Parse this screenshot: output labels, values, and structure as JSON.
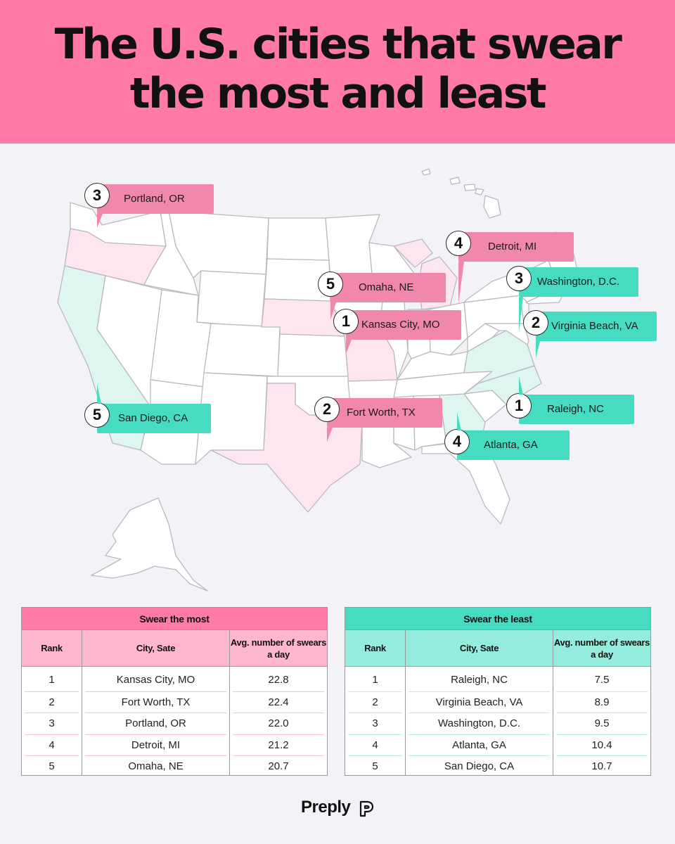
{
  "header": {
    "title_line1": "The U.S. cities that swear",
    "title_line2": "the most and least"
  },
  "colors": {
    "header_bg": "#ff7aa8",
    "most_accent": "#f087ad",
    "least_accent": "#45dcc2",
    "most_state_fill": "#fde6ef",
    "least_state_fill": "#dff5ef"
  },
  "map": {
    "most_swearing_states": [
      "OR",
      "NE",
      "MO",
      "MI",
      "TX"
    ],
    "least_swearing_states": [
      "CA",
      "NC",
      "VA",
      "GA"
    ],
    "labels": [
      {
        "rank": "3",
        "city": "Portland, OR",
        "group": "most"
      },
      {
        "rank": "4",
        "city": "Detroit, MI",
        "group": "most"
      },
      {
        "rank": "5",
        "city": "Omaha, NE",
        "group": "most"
      },
      {
        "rank": "1",
        "city": "Kansas City, MO",
        "group": "most"
      },
      {
        "rank": "2",
        "city": "Fort Worth, TX",
        "group": "most"
      },
      {
        "rank": "3",
        "city": "Washington, D.C.",
        "group": "least"
      },
      {
        "rank": "2",
        "city": "Virginia Beach, VA",
        "group": "least"
      },
      {
        "rank": "1",
        "city": "Raleigh, NC",
        "group": "least"
      },
      {
        "rank": "4",
        "city": "Atlanta, GA",
        "group": "least"
      },
      {
        "rank": "5",
        "city": "San Diego, CA",
        "group": "least"
      }
    ]
  },
  "tables": {
    "most": {
      "title": "Swear the most",
      "headers": [
        "Rank",
        "City, Sate",
        "Avg. number of swears a day"
      ],
      "rows": [
        {
          "rank": "1",
          "city": "Kansas City, MO",
          "avg": "22.8"
        },
        {
          "rank": "2",
          "city": "Fort Worth, TX",
          "avg": "22.4"
        },
        {
          "rank": "3",
          "city": "Portland, OR",
          "avg": "22.0"
        },
        {
          "rank": "4",
          "city": "Detroit, MI",
          "avg": "21.2"
        },
        {
          "rank": "5",
          "city": "Omaha, NE",
          "avg": "20.7"
        }
      ]
    },
    "least": {
      "title": "Swear the least",
      "headers": [
        "Rank",
        "City, Sate",
        "Avg. number of swears a day"
      ],
      "rows": [
        {
          "rank": "1",
          "city": "Raleigh, NC",
          "avg": "7.5"
        },
        {
          "rank": "2",
          "city": "Virginia Beach, VA",
          "avg": "8.9"
        },
        {
          "rank": "3",
          "city": "Washington, D.C.",
          "avg": "9.5"
        },
        {
          "rank": "4",
          "city": "Atlanta, GA",
          "avg": "10.4"
        },
        {
          "rank": "5",
          "city": "San Diego, CA",
          "avg": "10.7"
        }
      ]
    }
  },
  "footer": {
    "logo_text": "Preply",
    "logo_icon": "preply-logo-icon"
  }
}
